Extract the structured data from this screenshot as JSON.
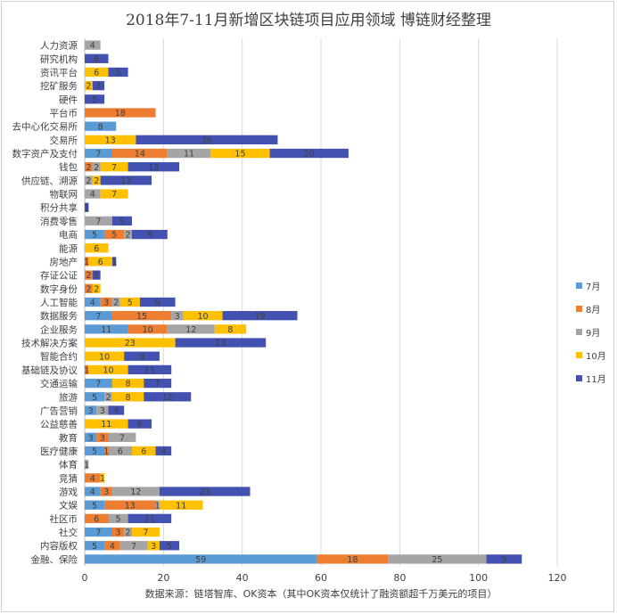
{
  "chart_data": {
    "type": "bar",
    "orientation": "horizontal",
    "stacked": true,
    "title": "2018年7-11月新增区块链项目应用领域 博链财经整理",
    "source_note": "数据来源：链塔智库、OK资本（其中OK资本仅统计了融资额超千万美元的项目）",
    "xlim": [
      0,
      120
    ],
    "xticks": [
      0,
      20,
      40,
      60,
      80,
      100,
      120
    ],
    "grid": true,
    "legend_position": "right",
    "categories": [
      "人力资源",
      "研究机构",
      "资讯平台",
      "挖矿服务",
      "硬件",
      "平台币",
      "去中心化交易所",
      "交易所",
      "数字资产及支付",
      "钱包",
      "供应链、溯源",
      "物联网",
      "积分共享",
      "消费零售",
      "电商",
      "能源",
      "房地产",
      "存证公证",
      "数字身份",
      "人工智能",
      "数据服务",
      "企业服务",
      "技术解决方案",
      "智能合约",
      "基础链及协议",
      "交通运输",
      "旅游",
      "广告营销",
      "公益慈善",
      "教育",
      "医疗健康",
      "体育",
      "竞猜",
      "游戏",
      "文娱",
      "社区币",
      "社交",
      "内容版权",
      "金融、保险"
    ],
    "series": [
      {
        "name": "7月",
        "color": "#5B9BD5",
        "values": [
          0,
          0,
          0,
          0,
          0,
          0,
          8,
          0,
          7,
          0,
          0,
          0,
          0,
          0,
          5,
          0,
          0,
          0,
          0,
          4,
          7,
          11,
          0,
          0,
          0,
          7,
          5,
          3,
          0,
          3,
          5,
          0,
          0,
          4,
          5,
          0,
          7,
          5,
          59
        ]
      },
      {
        "name": "8月",
        "color": "#ED7D31",
        "values": [
          0,
          0,
          0,
          0,
          0,
          18,
          0,
          0,
          14,
          2,
          0,
          0,
          0,
          0,
          5,
          0,
          1,
          2,
          2,
          3,
          15,
          10,
          0,
          0,
          1,
          0,
          0,
          0,
          0,
          3,
          1,
          0,
          4,
          3,
          13,
          6,
          3,
          4,
          18
        ]
      },
      {
        "name": "9月",
        "color": "#A5A5A5",
        "values": [
          4,
          0,
          0,
          0,
          0,
          0,
          0,
          0,
          11,
          2,
          2,
          4,
          0,
          7,
          2,
          0,
          0,
          0,
          0,
          2,
          3,
          12,
          0,
          0,
          0,
          0,
          2,
          3,
          0,
          7,
          6,
          1,
          0,
          12,
          1,
          5,
          2,
          7,
          25
        ]
      },
      {
        "name": "10月",
        "color": "#FFC000",
        "values": [
          0,
          0,
          6,
          2,
          0,
          0,
          0,
          13,
          15,
          7,
          2,
          7,
          0,
          0,
          0,
          6,
          6,
          0,
          2,
          5,
          10,
          8,
          23,
          10,
          10,
          8,
          8,
          0,
          11,
          0,
          6,
          0,
          1,
          0,
          11,
          0,
          7,
          3,
          0
        ]
      },
      {
        "name": "11月",
        "color": "#4352B0",
        "values": [
          0,
          6,
          5,
          3,
          5,
          0,
          0,
          36,
          20,
          13,
          13,
          0,
          1,
          5,
          9,
          0,
          1,
          2,
          0,
          9,
          19,
          0,
          23,
          9,
          11,
          7,
          12,
          4,
          6,
          0,
          4,
          0,
          0,
          23,
          0,
          11,
          0,
          5,
          9
        ]
      }
    ]
  }
}
